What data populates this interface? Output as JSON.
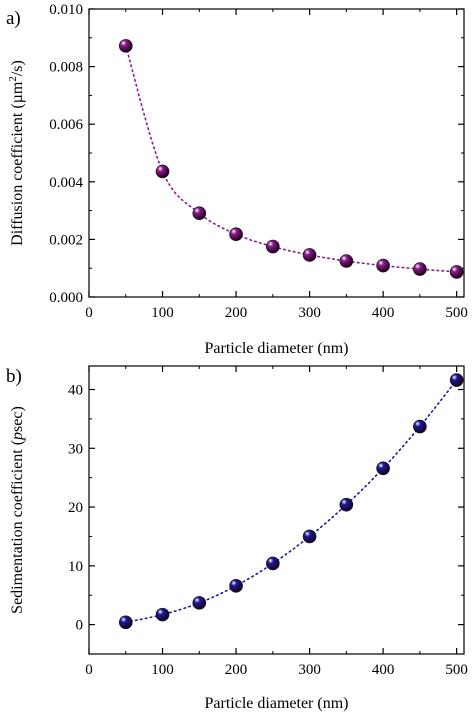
{
  "colors": {
    "panel_a_marker": "#8b1a8b",
    "panel_b_marker": "#1a1a9a",
    "axis": "#000000"
  },
  "chart_data": [
    {
      "type": "scatter",
      "panel_label": "a)",
      "xlabel": "Particle diameter (nm)",
      "ylabel": "Diffusion coefficient (µm²/s)",
      "ylabel_parts": {
        "pre": "Diffusion coefficient (",
        "unit": "µm",
        "sup": "2",
        "post": "/s)"
      },
      "xlim": [
        0,
        510
      ],
      "ylim": [
        0,
        0.01
      ],
      "xticks": [
        "0",
        "100",
        "200",
        "300",
        "400",
        "500"
      ],
      "xtick_values": [
        0,
        100,
        200,
        300,
        400,
        500
      ],
      "yticks": [
        "0.000",
        "0.002",
        "0.004",
        "0.006",
        "0.008",
        "0.010"
      ],
      "ytick_values": [
        0,
        0.002,
        0.004,
        0.006,
        0.008,
        0.01
      ],
      "marker": "sphere",
      "line": "dotted",
      "color": "#8b1a8b",
      "x": [
        50,
        100,
        150,
        200,
        250,
        300,
        350,
        400,
        450,
        500
      ],
      "y": [
        0.00872,
        0.00436,
        0.00291,
        0.00218,
        0.00175,
        0.00146,
        0.00125,
        0.00109,
        0.00097,
        0.00087
      ]
    },
    {
      "type": "scatter",
      "panel_label": "b)",
      "xlabel": "Particle diameter (nm)",
      "ylabel": "Sedimentation coefficient (psec)",
      "ylabel_parts": {
        "pre": "Sedimentation coefficient (",
        "italic": "p",
        "post": "sec)"
      },
      "xlim": [
        0,
        510
      ],
      "ylim": [
        -5,
        44
      ],
      "xticks": [
        "0",
        "100",
        "200",
        "300",
        "400",
        "500"
      ],
      "xtick_values": [
        0,
        100,
        200,
        300,
        400,
        500
      ],
      "yticks": [
        "0",
        "10",
        "20",
        "30",
        "40"
      ],
      "ytick_values": [
        0,
        10,
        20,
        30,
        40
      ],
      "marker": "sphere",
      "line": "dotted",
      "color": "#1a1a9a",
      "x": [
        50,
        100,
        150,
        200,
        250,
        300,
        350,
        400,
        450,
        500
      ],
      "y": [
        0.4,
        1.7,
        3.7,
        6.6,
        10.4,
        15.0,
        20.4,
        26.6,
        33.7,
        41.6
      ]
    }
  ]
}
